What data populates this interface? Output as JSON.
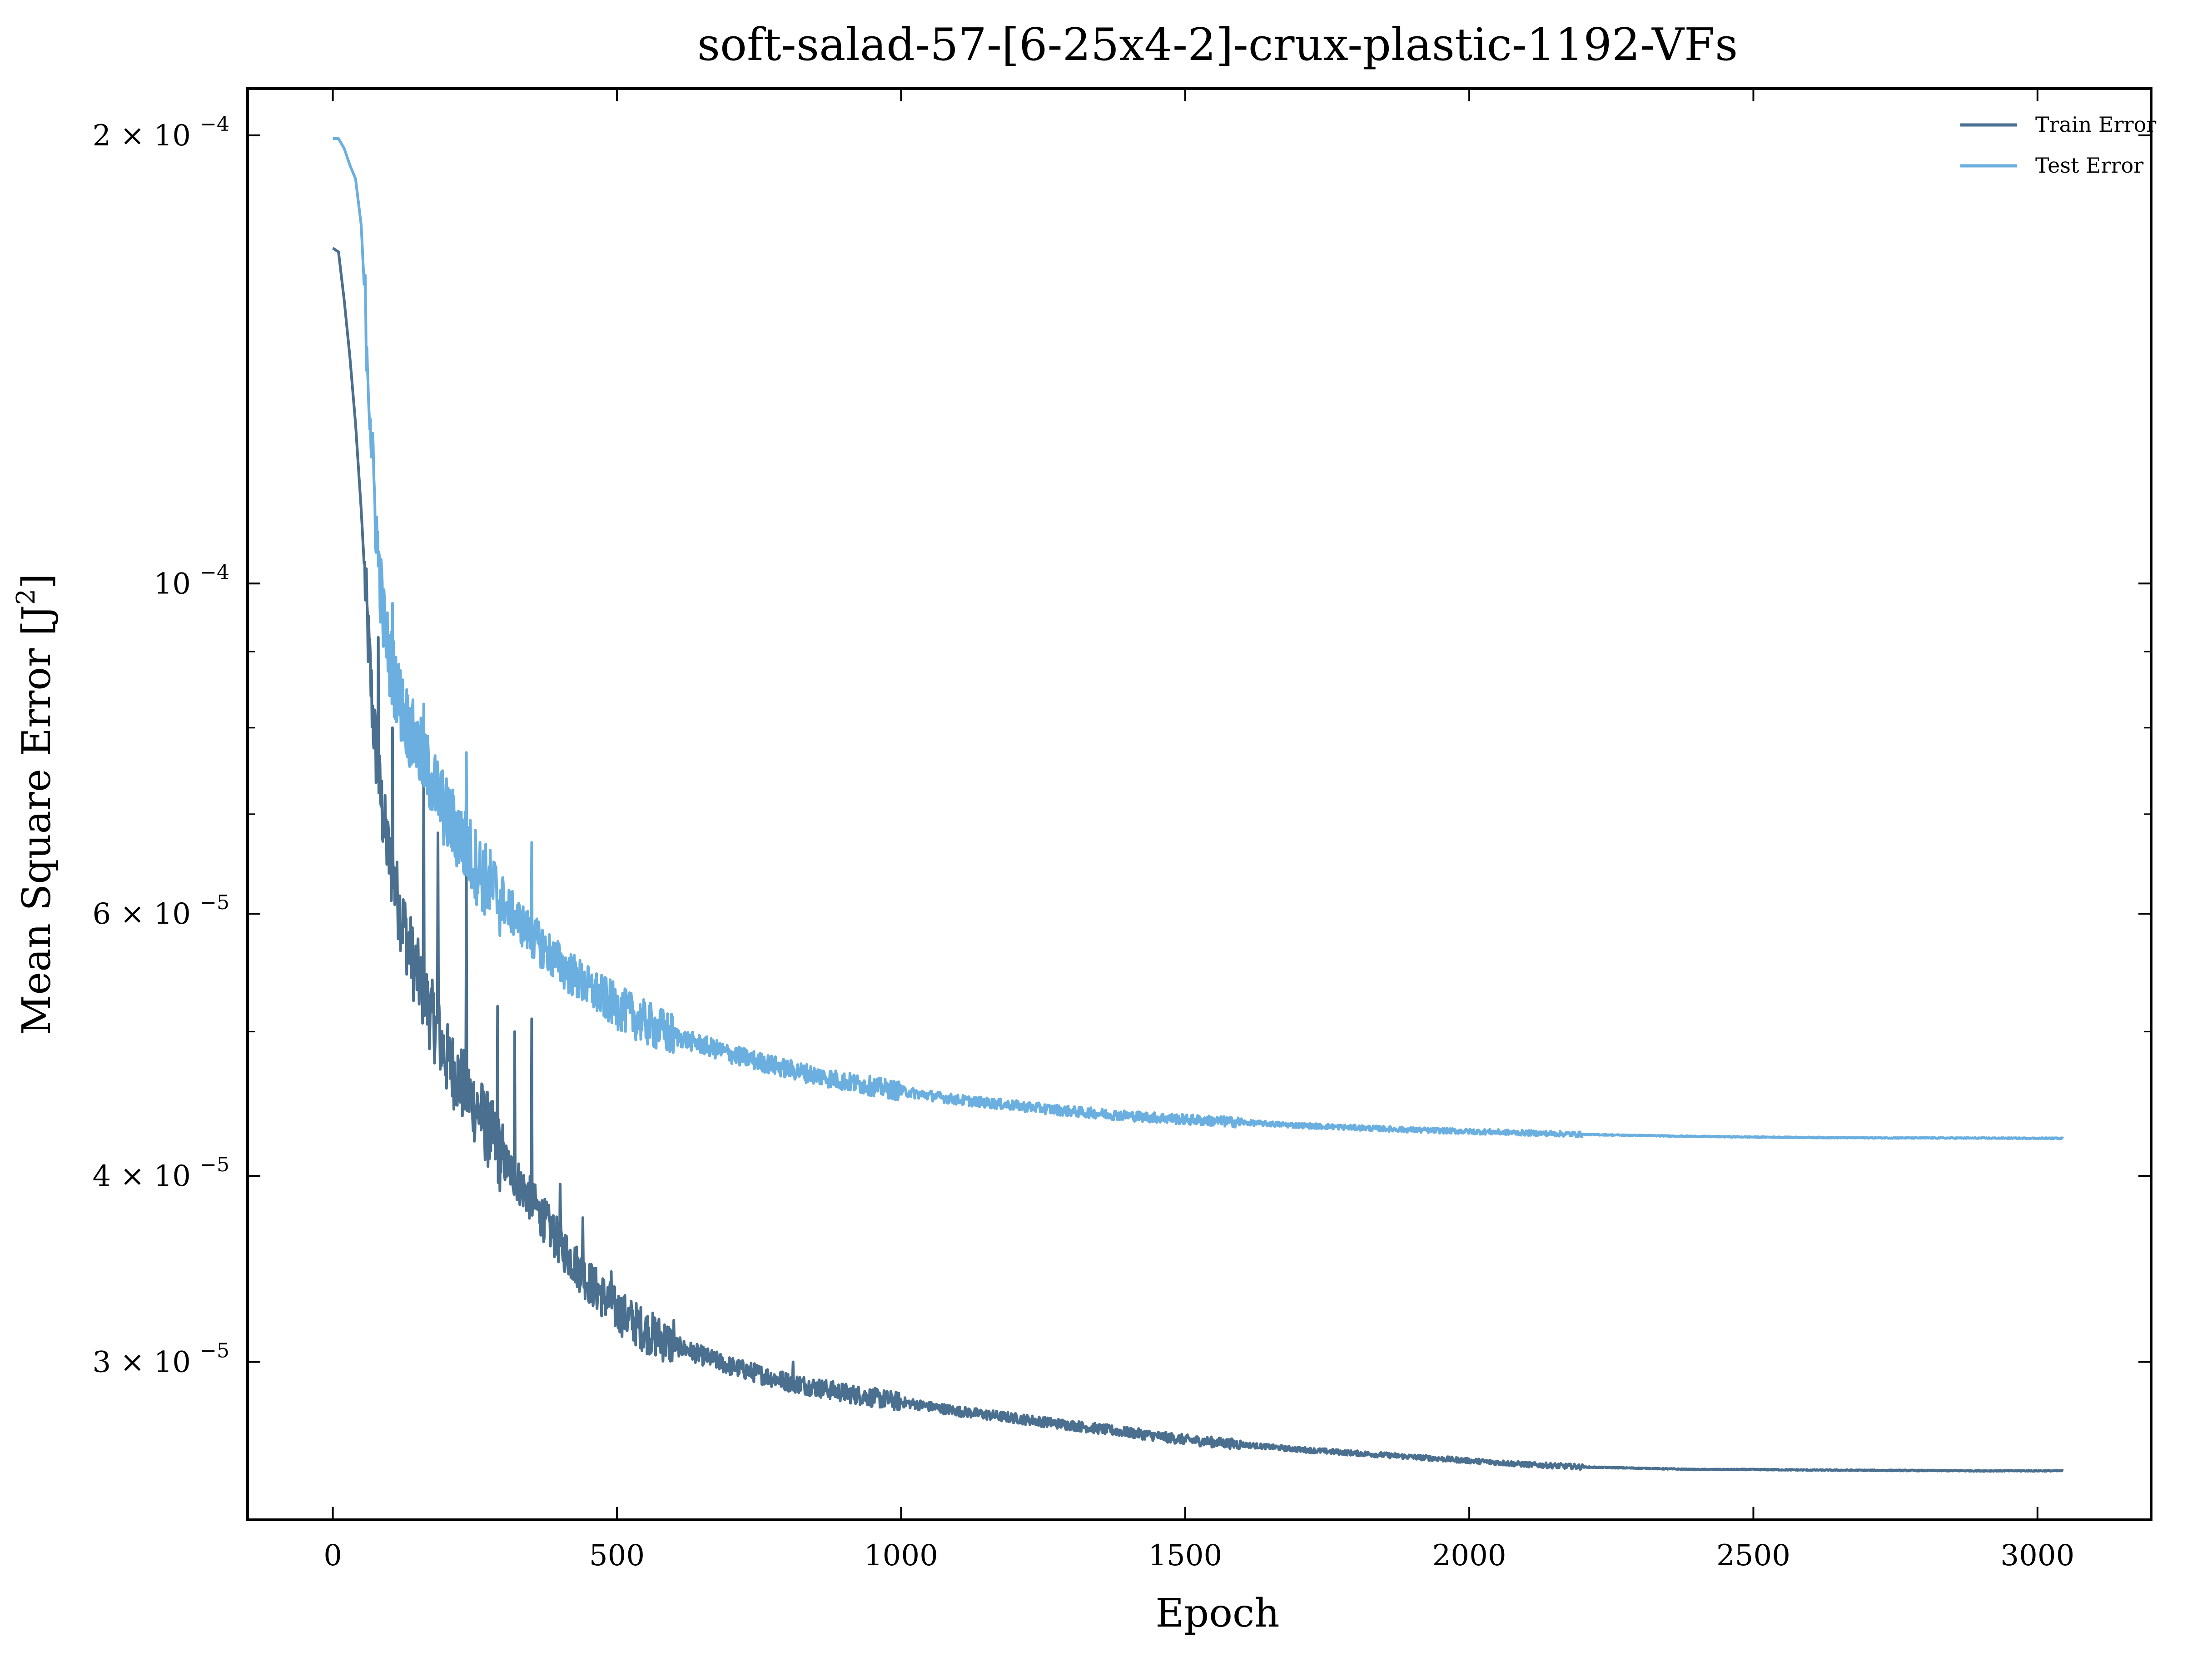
{
  "chart_data": {
    "type": "line",
    "title": "soft-salad-57-[6-25x4-2]-crux-plastic-1192-VFs",
    "xlabel": "Epoch",
    "ylabel": "Mean Square Error [J",
    "ylabel_sup": "2",
    "ylabel_end": "]",
    "yscale": "log",
    "xlim": [
      -150,
      3200
    ],
    "ylim": [
      2.35e-05,
      0.000215
    ],
    "grid": false,
    "legend_position": "top-right",
    "x_ticks": [
      {
        "value": 0,
        "label": "0"
      },
      {
        "value": 500,
        "label": "500"
      },
      {
        "value": 1000,
        "label": "1000"
      },
      {
        "value": 1500,
        "label": "1500"
      },
      {
        "value": 2000,
        "label": "2000"
      },
      {
        "value": 2500,
        "label": "2500"
      },
      {
        "value": 3000,
        "label": "3000"
      }
    ],
    "y_ticks": [
      {
        "value": 0.0002,
        "mantissa": "2 × 10",
        "exponent": "−4"
      },
      {
        "value": 0.0001,
        "mantissa": "10",
        "exponent": "−4"
      },
      {
        "value": 6e-05,
        "mantissa": "6 × 10",
        "exponent": "−5"
      },
      {
        "value": 4e-05,
        "mantissa": "4 × 10",
        "exponent": "−5"
      },
      {
        "value": 3e-05,
        "mantissa": "3 × 10",
        "exponent": "−5"
      }
    ],
    "y_minor_ticks": [
      9e-05,
      8e-05,
      7e-05,
      5e-05
    ],
    "series": [
      {
        "name": "Train Error",
        "color": "#4a6f8f",
        "x": [
          0,
          10,
          20,
          30,
          40,
          50,
          60,
          70,
          80,
          90,
          100,
          120,
          140,
          160,
          180,
          200,
          230,
          260,
          300,
          350,
          400,
          450,
          500,
          550,
          600,
          700,
          800,
          900,
          1000,
          1100,
          1200,
          1300,
          1400,
          1500,
          1600,
          1700,
          1800,
          1900,
          2000,
          2100,
          2200,
          2300,
          2400,
          2500,
          2600,
          2700,
          2800,
          2900,
          3000,
          3045
        ],
        "values": [
          0.000168,
          0.000167,
          0.000155,
          0.000142,
          0.000128,
          0.000112,
          9.5e-05,
          8.2e-05,
          7.4e-05,
          6.9e-05,
          6.5e-05,
          6e-05,
          5.6e-05,
          5.3e-05,
          5.05e-05,
          4.8e-05,
          4.6e-05,
          4.4e-05,
          4.1e-05,
          3.85e-05,
          3.6e-05,
          3.4e-05,
          3.25e-05,
          3.15e-05,
          3.08e-05,
          2.98e-05,
          2.91e-05,
          2.86e-05,
          2.82e-05,
          2.78e-05,
          2.75e-05,
          2.72e-05,
          2.69e-05,
          2.66e-05,
          2.64e-05,
          2.62e-05,
          2.605e-05,
          2.59e-05,
          2.575e-05,
          2.56e-05,
          2.55e-05,
          2.545e-05,
          2.54e-05,
          2.54e-05,
          2.538e-05,
          2.537e-05,
          2.536e-05,
          2.535e-05,
          2.535e-05,
          2.535e-05
        ],
        "spikes": [
          [
            80,
            9.2e-05
          ],
          [
            105,
            8e-05
          ],
          [
            160,
            7.6e-05
          ],
          [
            185,
            6.8e-05
          ],
          [
            235,
            6.4e-05
          ],
          [
            290,
            5.2e-05
          ],
          [
            320,
            5e-05
          ],
          [
            350,
            5.1e-05
          ],
          [
            400,
            3.95e-05
          ],
          [
            440,
            3.75e-05
          ],
          [
            490,
            3.45e-05
          ],
          [
            600,
            3.2e-05
          ],
          [
            810,
            3e-05
          ]
        ]
      },
      {
        "name": "Test Error",
        "color": "#6aafe0",
        "x": [
          0,
          10,
          20,
          30,
          40,
          50,
          60,
          70,
          80,
          90,
          100,
          120,
          140,
          160,
          180,
          200,
          230,
          260,
          300,
          350,
          400,
          450,
          500,
          550,
          600,
          700,
          800,
          900,
          1000,
          1100,
          1200,
          1300,
          1400,
          1500,
          1600,
          1700,
          1800,
          1900,
          2000,
          2100,
          2200,
          2300,
          2400,
          2500,
          2600,
          2700,
          2800,
          2900,
          3000,
          3045
        ],
        "values": [
          0.000199,
          0.000199,
          0.000196,
          0.000191,
          0.000187,
          0.000174,
          0.000145,
          0.00012,
          0.000104,
          9.4e-05,
          8.9e-05,
          8.3e-05,
          7.9e-05,
          7.6e-05,
          7.3e-05,
          7e-05,
          6.7e-05,
          6.4e-05,
          6.1e-05,
          5.8e-05,
          5.55e-05,
          5.35e-05,
          5.2e-05,
          5.07e-05,
          4.97e-05,
          4.83e-05,
          4.72e-05,
          4.63e-05,
          4.56e-05,
          4.5e-05,
          4.46e-05,
          4.42e-05,
          4.39e-05,
          4.365e-05,
          4.345e-05,
          4.325e-05,
          4.31e-05,
          4.295e-05,
          4.285e-05,
          4.275e-05,
          4.265e-05,
          4.258e-05,
          4.252e-05,
          4.248e-05,
          4.245e-05,
          4.243e-05,
          4.242e-05,
          4.241e-05,
          4.24e-05,
          4.24e-05
        ],
        "spikes": [
          [
            75,
            0.000106
          ],
          [
            105,
            9.7e-05
          ],
          [
            160,
            8.3e-05
          ],
          [
            235,
            7.7e-05
          ],
          [
            350,
            6.7e-05
          ]
        ]
      }
    ]
  }
}
